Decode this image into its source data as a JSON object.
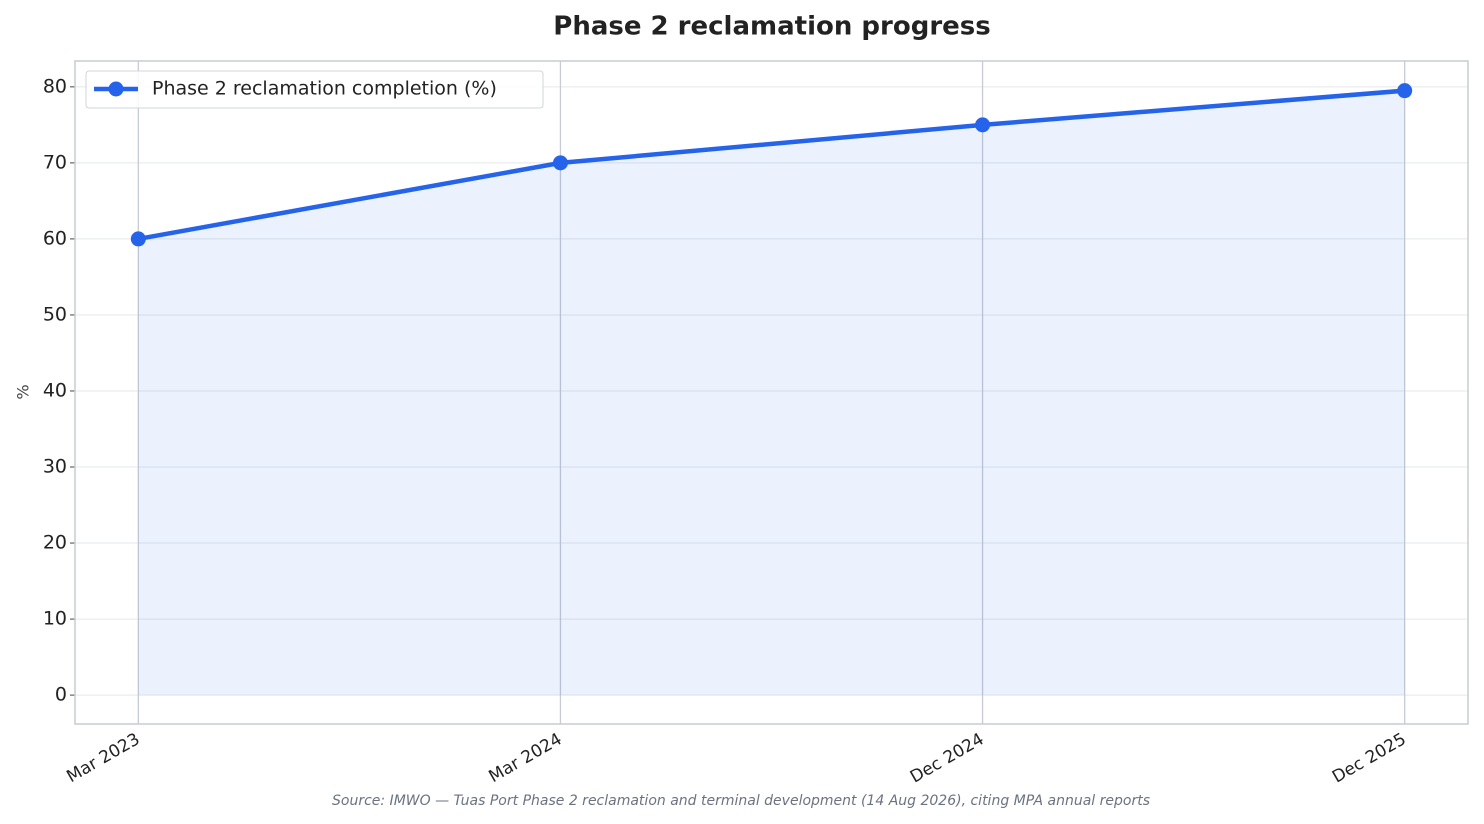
{
  "chart_data": {
    "type": "line",
    "title": "Phase 2 reclamation progress",
    "ylabel": "%",
    "source": "Source: IMWO — Tuas Port Phase 2 reclamation and terminal development (14 Aug 2026), citing MPA annual reports",
    "categories": [
      "Mar 2023",
      "Mar 2024",
      "Dec 2024",
      "Dec 2025"
    ],
    "series": [
      {
        "name": "Phase 2 reclamation completion (%)",
        "color": "#2563eb",
        "values": [
          60,
          70,
          75,
          79.5
        ]
      }
    ],
    "ylim": [
      -3.8,
      83.4
    ],
    "yticks": [
      0,
      10,
      20,
      30,
      40,
      50,
      60,
      70,
      80
    ],
    "grid": true,
    "area_fill": true,
    "legend": "upper left"
  }
}
